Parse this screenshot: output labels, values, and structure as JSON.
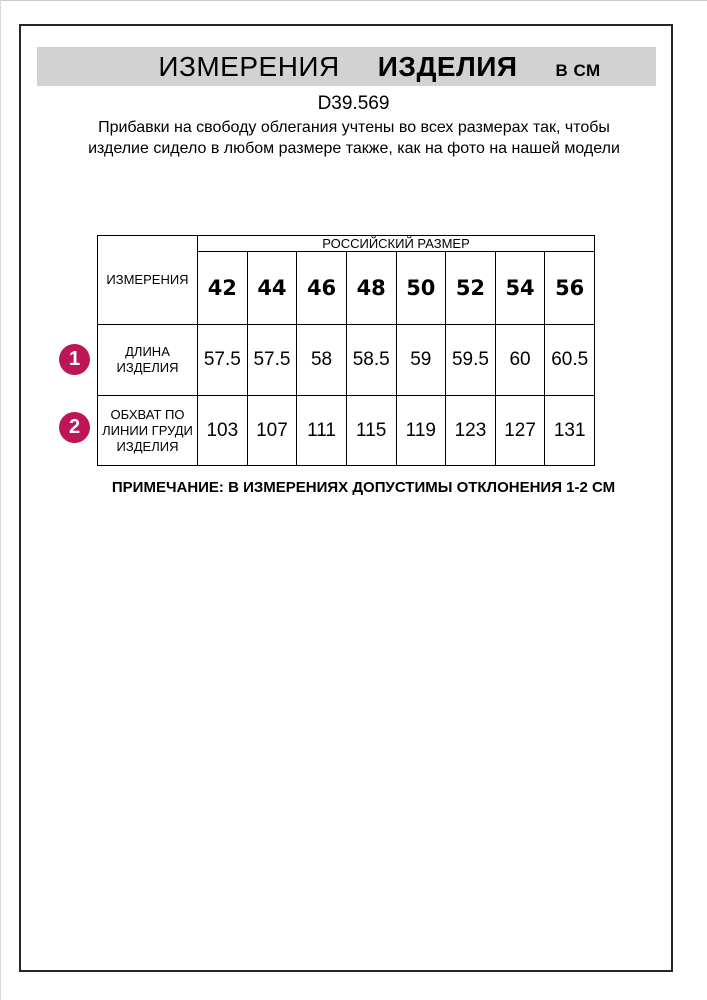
{
  "header": {
    "title_word1": "ИЗМЕРЕНИЯ",
    "title_word2": "ИЗДЕЛИЯ",
    "title_unit": "В СМ"
  },
  "product": {
    "code": "D39.569",
    "description": "Прибавки на свободу облегания учтены во всех размерах так, чтобы изделие сидело в любом размере также, как на фото на нашей модели"
  },
  "size_table": {
    "measure_col_header": "ИЗМЕРЕНИЯ",
    "size_group_header": "РОССИЙСКИЙ РАЗМЕР",
    "sizes": [
      "42",
      "44",
      "46",
      "48",
      "50",
      "52",
      "54",
      "56"
    ],
    "rows": [
      {
        "marker": "1",
        "label": "ДЛИНА ИЗДЕЛИЯ",
        "values": [
          "57.5",
          "57.5",
          "58",
          "58.5",
          "59",
          "59.5",
          "60",
          "60.5"
        ]
      },
      {
        "marker": "2",
        "label": "ОБХВАТ ПО ЛИНИИ ГРУДИ ИЗДЕЛИЯ",
        "values": [
          "103",
          "107",
          "111",
          "115",
          "119",
          "123",
          "127",
          "131"
        ]
      }
    ]
  },
  "note": "ПРИМЕЧАНИЕ: В ИЗМЕРЕНИЯХ ДОПУСТИМЫ ОТКЛОНЕНИЯ 1-2 СМ",
  "colors": {
    "marker": "#bc1657",
    "header_bar": "#d2d2d2",
    "page_border": "#262626"
  }
}
